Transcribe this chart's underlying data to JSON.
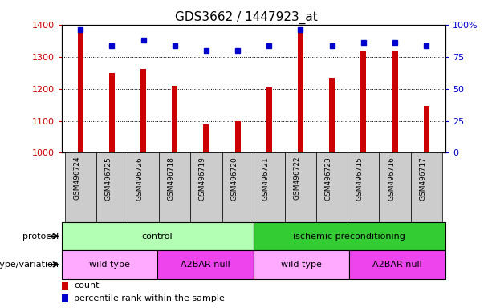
{
  "title": "GDS3662 / 1447923_at",
  "samples": [
    "GSM496724",
    "GSM496725",
    "GSM496726",
    "GSM496718",
    "GSM496719",
    "GSM496720",
    "GSM496721",
    "GSM496722",
    "GSM496723",
    "GSM496715",
    "GSM496716",
    "GSM496717"
  ],
  "counts": [
    1390,
    1250,
    1262,
    1210,
    1090,
    1100,
    1204,
    1380,
    1235,
    1318,
    1320,
    1148
  ],
  "percentiles": [
    96,
    84,
    88,
    84,
    80,
    80,
    84,
    96,
    84,
    86,
    86,
    84
  ],
  "ylim_left": [
    1000,
    1400
  ],
  "ylim_right": [
    0,
    100
  ],
  "yticks_left": [
    1000,
    1100,
    1200,
    1300,
    1400
  ],
  "yticks_right": [
    0,
    25,
    50,
    75,
    100
  ],
  "ytick_right_labels": [
    "0",
    "25",
    "50",
    "75",
    "100%"
  ],
  "bar_color": "#cc0000",
  "dot_color": "#0000cc",
  "bar_width": 0.18,
  "protocol_labels": [
    "control",
    "ischemic preconditioning"
  ],
  "protocol_color_light": "#b3ffb3",
  "protocol_color_dark": "#33cc33",
  "genotype_labels": [
    "wild type",
    "A2BAR null",
    "wild type",
    "A2BAR null"
  ],
  "genotype_color_light": "#ffaaff",
  "genotype_color_dark": "#ee44ee",
  "legend_count_color": "#cc0000",
  "legend_pct_color": "#0000cc",
  "left_label_color": "#cc0000",
  "right_label_color": "#0000cc",
  "xtick_bg": "#cccccc"
}
